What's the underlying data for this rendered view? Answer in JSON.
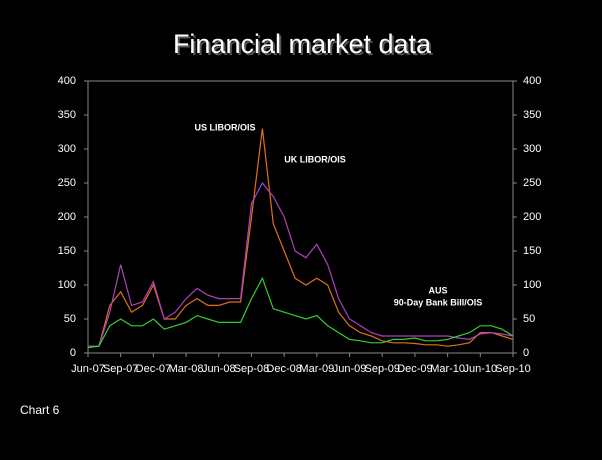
{
  "chart_data": {
    "type": "line",
    "title": "Financial market data",
    "footer": "Chart 6",
    "categories": [
      "Jun-07",
      null,
      null,
      "Sep-07",
      null,
      null,
      "Dec-07",
      null,
      null,
      "Mar-08",
      null,
      null,
      "Jun-08",
      null,
      null,
      "Sep-08",
      null,
      null,
      "Dec-08",
      null,
      null,
      "Mar-09",
      null,
      null,
      "Jun-09",
      null,
      null,
      "Sep-09",
      null,
      null,
      "Dec-09",
      null,
      null,
      "Mar-10",
      null,
      null,
      "Jun-10",
      null,
      null,
      "Sep-10"
    ],
    "series": [
      {
        "name": "US LIBOR/OIS",
        "color": "#e0701c",
        "values": [
          10,
          10,
          70,
          90,
          60,
          70,
          100,
          50,
          50,
          70,
          80,
          70,
          70,
          75,
          75,
          200,
          330,
          190,
          150,
          110,
          100,
          110,
          100,
          60,
          40,
          30,
          25,
          18,
          15,
          15,
          14,
          12,
          12,
          10,
          12,
          15,
          30,
          30,
          25,
          20
        ]
      },
      {
        "name": "UK LIBOR/OIS",
        "color": "#b040c0",
        "values": [
          10,
          10,
          60,
          130,
          70,
          75,
          105,
          50,
          60,
          80,
          95,
          85,
          80,
          80,
          80,
          220,
          250,
          230,
          200,
          150,
          140,
          160,
          130,
          80,
          50,
          40,
          30,
          25,
          25,
          25,
          25,
          25,
          25,
          25,
          22,
          20,
          28,
          30,
          28,
          25
        ]
      },
      {
        "name": "AUS",
        "color": "#30d030",
        "values": [
          8,
          10,
          40,
          50,
          40,
          40,
          50,
          35,
          40,
          45,
          55,
          50,
          45,
          45,
          45,
          80,
          110,
          65,
          60,
          55,
          50,
          55,
          40,
          30,
          20,
          18,
          15,
          15,
          20,
          20,
          22,
          18,
          18,
          20,
          25,
          30,
          40,
          40,
          35,
          25
        ]
      }
    ],
    "annotations": [
      "90-Day Bank Bill/OIS"
    ],
    "ylim": [
      0,
      400
    ],
    "yticks": [
      0,
      50,
      100,
      150,
      200,
      250,
      300,
      350,
      400
    ],
    "y2lim": [
      0,
      400
    ],
    "y2ticks": [
      0,
      50,
      100,
      150,
      200,
      250,
      300,
      350,
      400
    ],
    "grid": false
  }
}
